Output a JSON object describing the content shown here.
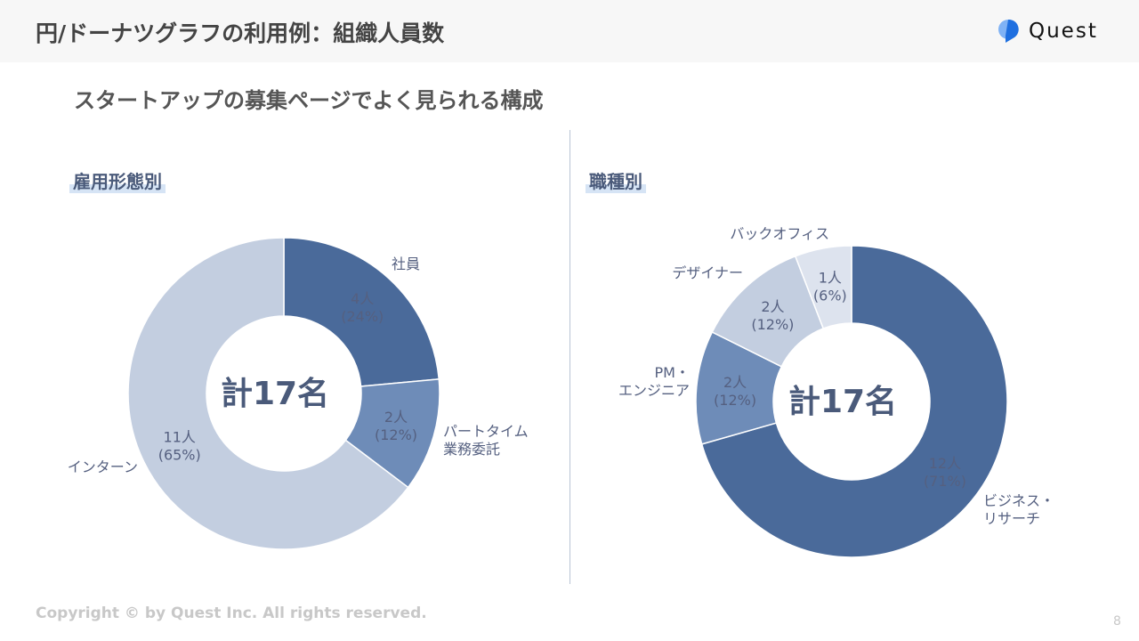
{
  "header": {
    "title": "円/ドーナツグラフの利用例：組織人員数",
    "logo_text": "Quest"
  },
  "subtitle": "スタートアップの募集ページでよく見られる構成",
  "footer": {
    "copyright": "Copyright © by Quest Inc. All rights reserved.",
    "page": "8"
  },
  "chart_data": [
    {
      "type": "pie",
      "donut": true,
      "title": "雇用形態別",
      "center_label": "計17名",
      "slices": [
        {
          "name": "社員",
          "value": 4,
          "value_label": "4人",
          "pct_label": "(24%)",
          "color": "#4a6a9a"
        },
        {
          "name": "パートタイム\n業務委託",
          "value": 2,
          "value_label": "2人",
          "pct_label": "(12%)",
          "color": "#6e8cb8"
        },
        {
          "name": "インターン",
          "value": 11,
          "value_label": "11人",
          "pct_label": "(65%)",
          "color": "#c3cee0"
        }
      ]
    },
    {
      "type": "pie",
      "donut": true,
      "title": "職種別",
      "center_label": "計17名",
      "slices": [
        {
          "name": "ビジネス・\nリサーチ",
          "value": 12,
          "value_label": "12人",
          "pct_label": "(71%)",
          "color": "#4a6a9a"
        },
        {
          "name": "PM・\nエンジニア",
          "value": 2,
          "value_label": "2人",
          "pct_label": "(12%)",
          "color": "#6e8cb8"
        },
        {
          "name": "デザイナー",
          "value": 2,
          "value_label": "2人",
          "pct_label": "(12%)",
          "color": "#c3cee0"
        },
        {
          "name": "バックオフィス",
          "value": 1,
          "value_label": "1人",
          "pct_label": "(6%)",
          "color": "#dde3ee"
        }
      ]
    }
  ]
}
